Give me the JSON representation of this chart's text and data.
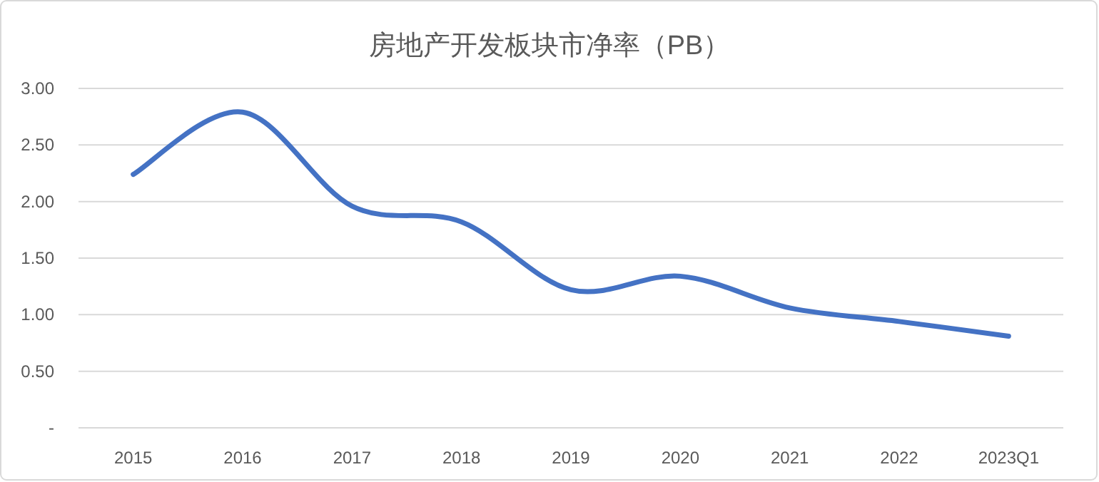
{
  "chart_data": {
    "type": "line",
    "title": "房地产开发板块市净率（PB）",
    "categories": [
      "2015",
      "2016",
      "2017",
      "2018",
      "2019",
      "2020",
      "2021",
      "2022",
      "2023Q1"
    ],
    "values": [
      2.24,
      2.79,
      1.96,
      1.82,
      1.22,
      1.34,
      1.06,
      0.94,
      0.81
    ],
    "color": "#4472c4",
    "ylim": [
      0,
      3
    ],
    "yticks": [
      {
        "value": 0,
        "label": "-"
      },
      {
        "value": 0.5,
        "label": "0.50"
      },
      {
        "value": 1,
        "label": "1.00"
      },
      {
        "value": 1.5,
        "label": "1.50"
      },
      {
        "value": 2,
        "label": "2.00"
      },
      {
        "value": 2.5,
        "label": "2.50"
      },
      {
        "value": 3,
        "label": "3.00"
      }
    ],
    "grid": "y"
  }
}
